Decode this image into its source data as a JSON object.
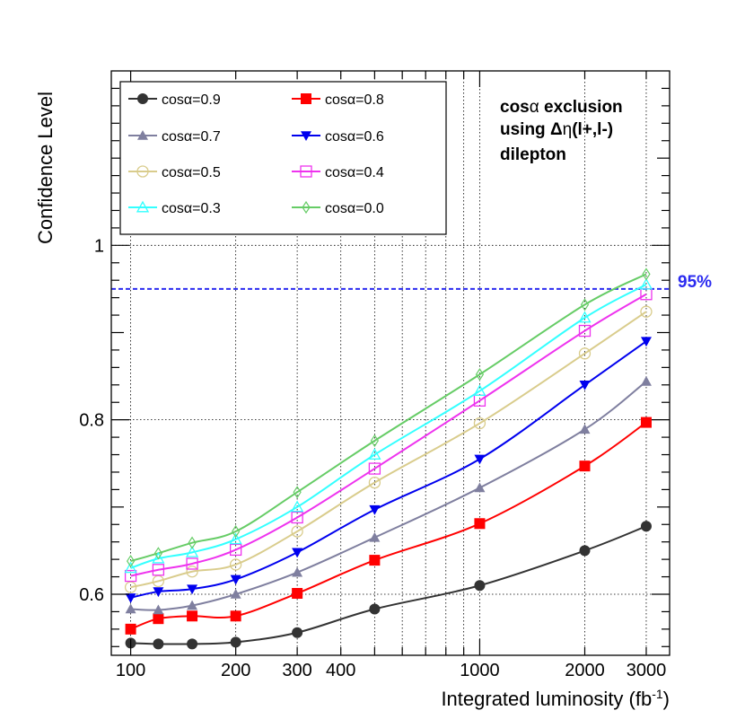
{
  "chart_data": {
    "type": "line",
    "x_scale": "log",
    "x": [
      100,
      120,
      150,
      200,
      300,
      500,
      1000,
      2000,
      3000
    ],
    "xlabel": "Integrated luminosity (fb",
    "xlabel_sup": "-1",
    "xlabel_close": ")",
    "ylabel": "Confidence Level",
    "xlim": [
      88,
      3500
    ],
    "ylim": [
      0.53,
      1.2
    ],
    "x_ticks": [
      {
        "value": 100,
        "label": "100"
      },
      {
        "value": 200,
        "label": "200"
      },
      {
        "value": 300,
        "label": "300"
      },
      {
        "value": 400,
        "label": "400"
      },
      {
        "value": 1000,
        "label": "1000"
      },
      {
        "value": 2000,
        "label": "2000"
      },
      {
        "value": 3000,
        "label": "3000"
      }
    ],
    "y_ticks": [
      {
        "value": 0.6,
        "label": "0.6"
      },
      {
        "value": 0.8,
        "label": "0.8"
      },
      {
        "value": 1.0,
        "label": "1"
      }
    ],
    "reference_line": {
      "value": 0.95,
      "label": "95%",
      "color": "#2b2bf0"
    },
    "annotation": {
      "line1_prefix": "cos",
      "line1_greek": "α",
      "line1_suffix": " exclusion",
      "line2_prefix": "using  Δ",
      "line2_greek": "η",
      "line2_suffix": "(l+,l-)",
      "line3": "dilepton"
    },
    "series": [
      {
        "name": "cosα=0.9",
        "color": "#333333",
        "marker": "circle-filled",
        "values": [
          0.544,
          0.543,
          0.543,
          0.545,
          0.556,
          0.583,
          0.61,
          0.65,
          0.678
        ]
      },
      {
        "name": "cosα=0.8",
        "color": "#ff0000",
        "marker": "square-filled",
        "values": [
          0.56,
          0.572,
          0.575,
          0.575,
          0.601,
          0.639,
          0.681,
          0.747,
          0.797
        ]
      },
      {
        "name": "cosα=0.7",
        "color": "#7f7f9f",
        "marker": "triangle-up-filled",
        "values": [
          0.583,
          0.582,
          0.587,
          0.6,
          0.625,
          0.665,
          0.722,
          0.789,
          0.844
        ]
      },
      {
        "name": "cosα=0.6",
        "color": "#0000ee",
        "marker": "triangle-down-filled",
        "values": [
          0.596,
          0.603,
          0.606,
          0.617,
          0.648,
          0.697,
          0.755,
          0.84,
          0.89
        ]
      },
      {
        "name": "cosα=0.5",
        "color": "#d9cc8c",
        "marker": "circle-open",
        "values": [
          0.608,
          0.615,
          0.626,
          0.634,
          0.672,
          0.728,
          0.796,
          0.876,
          0.924
        ]
      },
      {
        "name": "cosα=0.4",
        "color": "#ee33ee",
        "marker": "square-open",
        "values": [
          0.621,
          0.628,
          0.635,
          0.651,
          0.688,
          0.744,
          0.822,
          0.902,
          0.944
        ]
      },
      {
        "name": "cosα=0.3",
        "color": "#33ffff",
        "marker": "triangle-up-open",
        "values": [
          0.63,
          0.641,
          0.648,
          0.663,
          0.7,
          0.76,
          0.833,
          0.917,
          0.955
        ]
      },
      {
        "name": "cosα=0.0",
        "color": "#66cc66",
        "marker": "diamond-open",
        "values": [
          0.638,
          0.647,
          0.659,
          0.672,
          0.717,
          0.776,
          0.852,
          0.932,
          0.967
        ]
      }
    ]
  }
}
